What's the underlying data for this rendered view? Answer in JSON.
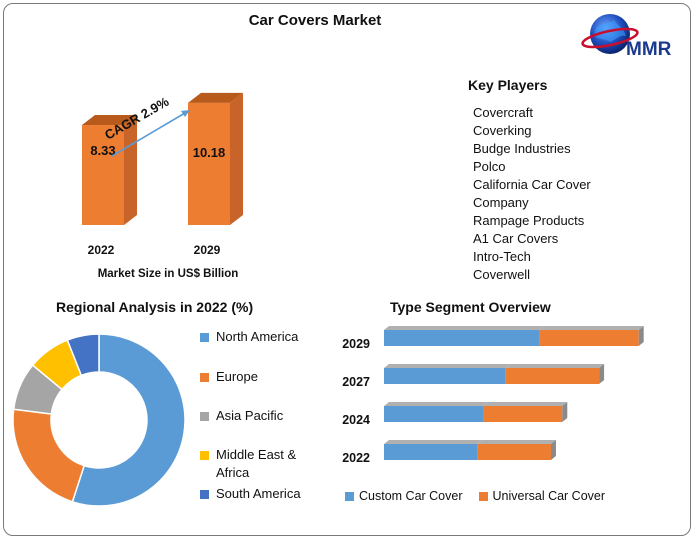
{
  "title": "Car Covers Market",
  "logo": {
    "text": "MMR"
  },
  "colors": {
    "orange": "#ED7D31",
    "orange_dark": "#B85A1C",
    "orange_side": "#C8642A",
    "blue": "#5B9BD5",
    "grey": "#A5A5A5",
    "yellow": "#FFC000",
    "navy": "#4472C4"
  },
  "key_players": {
    "title": "Key Players",
    "items": [
      "Covercraft",
      "Coverking",
      "Budge Industries",
      "Polco",
      "California Car Cover Company",
      "Rampage Products",
      "A1 Car Covers",
      "Intro-Tech",
      "Coverwell"
    ]
  },
  "regional": {
    "title": "Regional Analysis in 2022 (%)"
  },
  "type_segment": {
    "title": "Type Segment Overview"
  },
  "chart_data": [
    {
      "type": "bar",
      "categories": [
        "2022",
        "2029"
      ],
      "values": [
        8.33,
        10.18
      ],
      "data_labels": [
        "8.33",
        "10.18"
      ],
      "xlabel": "Market Size in US$ Billion",
      "annotation": "CAGR 2.9%"
    },
    {
      "type": "pie",
      "donut": true,
      "labels": [
        "North America",
        "Europe",
        "Asia Pacific",
        "Middle East & Africa",
        "South America"
      ],
      "values": [
        55,
        22,
        9,
        8,
        6
      ],
      "colors": [
        "#5B9BD5",
        "#ED7D31",
        "#A5A5A5",
        "#FFC000",
        "#4472C4"
      ]
    },
    {
      "type": "bar",
      "orientation": "horizontal",
      "stacked": true,
      "categories": [
        "2029",
        "2027",
        "2024",
        "2022"
      ],
      "series": [
        {
          "name": "Custom Car Cover",
          "values": [
            55,
            43,
            35,
            33
          ],
          "color": "#5B9BD5"
        },
        {
          "name": "Universal Car Cover",
          "values": [
            35,
            33,
            28,
            26
          ],
          "color": "#ED7D31"
        }
      ]
    }
  ]
}
